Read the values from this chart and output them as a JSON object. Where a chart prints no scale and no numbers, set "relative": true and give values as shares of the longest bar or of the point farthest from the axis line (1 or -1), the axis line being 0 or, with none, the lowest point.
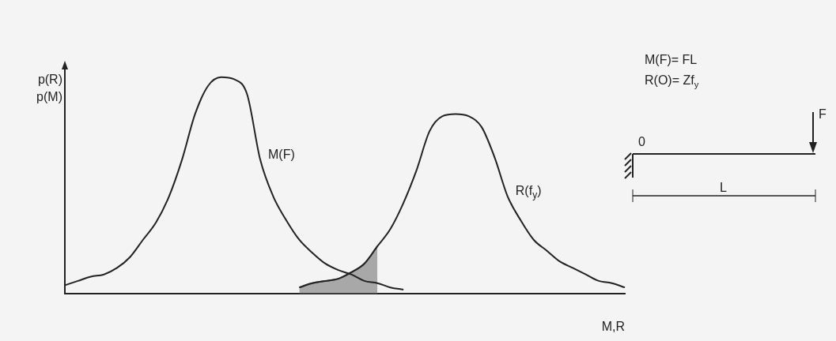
{
  "chart_data": {
    "type": "line",
    "relative": true,
    "ylabel": "p(R)\np(M)",
    "xlabel": "M,R",
    "grid": false,
    "legend": false,
    "marker": "none",
    "categories": [
      null,
      null,
      null,
      null,
      null,
      null,
      null,
      null,
      null,
      null,
      null,
      null,
      null,
      null,
      null,
      null,
      null,
      null,
      null,
      null,
      null,
      null,
      null,
      null,
      null,
      null,
      null,
      null,
      null,
      null,
      null,
      null,
      null,
      null,
      null,
      null,
      null,
      null,
      null,
      null,
      null,
      null,
      null,
      null
    ],
    "series": [
      {
        "name": "M(F)",
        "color": "#222222",
        "values": [
          0.04,
          0.06,
          0.08,
          0.09,
          0.12,
          0.17,
          0.25,
          0.33,
          0.45,
          0.62,
          0.83,
          0.96,
          1.0,
          0.99,
          0.92,
          0.62,
          0.45,
          0.34,
          0.25,
          0.19,
          0.14,
          0.11,
          0.09,
          0.06,
          0.05,
          0.03,
          0.02,
          null,
          null,
          null,
          null,
          null,
          null,
          null,
          null,
          null,
          null,
          null,
          null,
          null,
          null,
          null,
          null,
          null
        ]
      },
      {
        "name": "R(f$_{y}$)",
        "color": "#222222",
        "values": [
          null,
          null,
          null,
          null,
          null,
          null,
          null,
          null,
          null,
          null,
          null,
          null,
          null,
          null,
          null,
          null,
          null,
          null,
          0.03,
          0.05,
          0.06,
          0.07,
          0.1,
          0.14,
          0.22,
          0.3,
          0.42,
          0.57,
          0.75,
          0.82,
          0.83,
          0.82,
          0.77,
          0.63,
          0.45,
          0.34,
          0.25,
          0.2,
          0.15,
          0.12,
          0.09,
          0.06,
          0.05,
          0.03
        ]
      },
      {
        "type": "area",
        "color": "#666666",
        "values": [
          null,
          null,
          null,
          null,
          null,
          null,
          null,
          null,
          null,
          null,
          null,
          null,
          null,
          null,
          null,
          null,
          null,
          null,
          0.03,
          0.05,
          0.06,
          0.07,
          0.1,
          0.14,
          0.22,
          null,
          null,
          null,
          null,
          null,
          null,
          null,
          null,
          null,
          null,
          null,
          null,
          null,
          null,
          null,
          null,
          null,
          null,
          null
        ]
      }
    ],
    "annotations": [
      "M(F)= FL",
      "R(O)= Zf$_{y}$",
      "F",
      "0",
      "L"
    ]
  }
}
